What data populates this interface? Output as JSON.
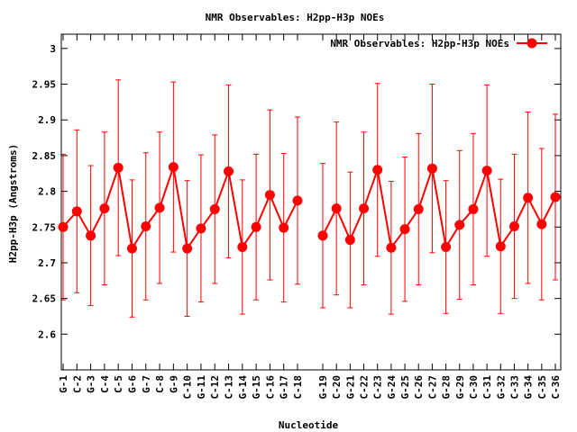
{
  "chart_data": {
    "type": "line",
    "title": "NMR Observables: H2pp-H3p NOEs",
    "xlabel": "Nucleotide",
    "ylabel": "H2pp-H3p (Angstroms)",
    "ylim": [
      2.55,
      3.02
    ],
    "yticks": [
      2.6,
      2.65,
      2.7,
      2.75,
      2.8,
      2.85,
      2.9,
      2.95,
      3
    ],
    "grid": false,
    "legend_position": "top-right",
    "categories": [
      "G-1",
      "C-2",
      "G-3",
      "C-4",
      "C-5",
      "G-6",
      "G-7",
      "C-8",
      "G-9",
      "C-10",
      "G-11",
      "C-12",
      "C-13",
      "G-14",
      "G-15",
      "C-16",
      "G-17",
      "C-18",
      "G-19",
      "C-20",
      "G-21",
      "C-22",
      "C-23",
      "G-24",
      "G-25",
      "C-26",
      "C-27",
      "G-28",
      "G-29",
      "C-30",
      "C-31",
      "G-32",
      "C-33",
      "G-34",
      "C-35",
      "C-36"
    ],
    "segments": [
      [
        0,
        17
      ],
      [
        18,
        35
      ]
    ],
    "series": [
      {
        "name": "NMR Observables: H2pp-H3p NOEs",
        "color": "#ff0000",
        "values": [
          2.75,
          2.772,
          2.738,
          2.776,
          2.833,
          2.72,
          2.751,
          2.777,
          2.834,
          2.72,
          2.748,
          2.775,
          2.828,
          2.722,
          2.75,
          2.795,
          2.749,
          2.787,
          2.738,
          2.776,
          2.732,
          2.776,
          2.83,
          2.721,
          2.747,
          2.775,
          2.832,
          2.722,
          2.753,
          2.775,
          2.829,
          2.723,
          2.751,
          2.791,
          2.754,
          2.792
        ],
        "errors": [
          0.102,
          0.114,
          0.098,
          0.107,
          0.123,
          0.096,
          0.103,
          0.106,
          0.119,
          0.095,
          0.103,
          0.104,
          0.121,
          0.094,
          0.102,
          0.119,
          0.104,
          0.117,
          0.101,
          0.121,
          0.095,
          0.107,
          0.121,
          0.093,
          0.101,
          0.106,
          0.118,
          0.093,
          0.104,
          0.106,
          0.12,
          0.094,
          0.101,
          0.12,
          0.106,
          0.116
        ]
      }
    ]
  }
}
